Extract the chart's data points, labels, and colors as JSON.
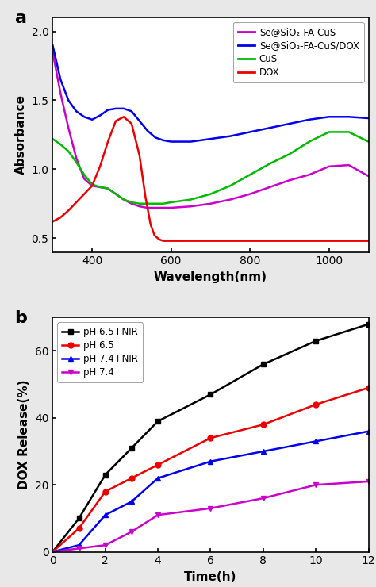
{
  "panel_a": {
    "xlabel": "Wavelength(nm)",
    "ylabel": "Absorbance",
    "xlim": [
      300,
      1100
    ],
    "ylim": [
      0.4,
      2.1
    ],
    "yticks": [
      0.5,
      1.0,
      1.5,
      2.0
    ],
    "xticks": [
      400,
      600,
      800,
      1000
    ],
    "series": {
      "magenta": {
        "label": "Se@SiO₂-FA-CuS",
        "color": "#cc00cc",
        "x": [
          300,
          320,
          340,
          360,
          380,
          400,
          420,
          440,
          460,
          480,
          500,
          520,
          540,
          560,
          580,
          600,
          650,
          700,
          750,
          800,
          850,
          900,
          950,
          1000,
          1050,
          1100
        ],
        "y": [
          1.85,
          1.55,
          1.3,
          1.08,
          0.93,
          0.88,
          0.87,
          0.86,
          0.82,
          0.78,
          0.75,
          0.73,
          0.72,
          0.72,
          0.72,
          0.72,
          0.73,
          0.75,
          0.78,
          0.82,
          0.87,
          0.92,
          0.96,
          1.02,
          1.03,
          0.95
        ]
      },
      "blue": {
        "label": "Se@SiO₂-FA-CuS/DOX",
        "color": "#0000ee",
        "x": [
          300,
          320,
          340,
          360,
          380,
          400,
          420,
          440,
          460,
          480,
          500,
          520,
          540,
          560,
          580,
          600,
          650,
          700,
          750,
          800,
          850,
          900,
          950,
          1000,
          1050,
          1100
        ],
        "y": [
          1.9,
          1.65,
          1.5,
          1.42,
          1.38,
          1.36,
          1.39,
          1.43,
          1.44,
          1.44,
          1.42,
          1.35,
          1.28,
          1.23,
          1.21,
          1.2,
          1.2,
          1.22,
          1.24,
          1.27,
          1.3,
          1.33,
          1.36,
          1.38,
          1.38,
          1.37
        ]
      },
      "green": {
        "label": "CuS",
        "color": "#00bb00",
        "x": [
          300,
          320,
          340,
          360,
          380,
          400,
          420,
          440,
          460,
          480,
          500,
          520,
          540,
          560,
          580,
          600,
          650,
          700,
          750,
          800,
          850,
          900,
          950,
          1000,
          1050,
          1100
        ],
        "y": [
          1.22,
          1.18,
          1.13,
          1.05,
          0.96,
          0.89,
          0.87,
          0.86,
          0.82,
          0.78,
          0.76,
          0.75,
          0.75,
          0.75,
          0.75,
          0.76,
          0.78,
          0.82,
          0.88,
          0.96,
          1.04,
          1.11,
          1.2,
          1.27,
          1.27,
          1.2
        ]
      },
      "red": {
        "label": "DOX",
        "color": "#ee0000",
        "x": [
          300,
          320,
          340,
          360,
          380,
          400,
          420,
          440,
          460,
          480,
          500,
          520,
          535,
          548,
          558,
          570,
          580,
          600,
          650,
          700,
          750,
          800,
          850,
          900,
          950,
          1000,
          1050,
          1100
        ],
        "y": [
          0.62,
          0.65,
          0.7,
          0.76,
          0.82,
          0.88,
          1.02,
          1.2,
          1.35,
          1.38,
          1.33,
          1.1,
          0.8,
          0.6,
          0.52,
          0.49,
          0.48,
          0.48,
          0.48,
          0.48,
          0.48,
          0.48,
          0.48,
          0.48,
          0.48,
          0.48,
          0.48,
          0.48
        ]
      }
    },
    "legend_order": [
      "magenta",
      "blue",
      "green",
      "red"
    ]
  },
  "panel_b": {
    "xlabel": "Time(h)",
    "ylabel": "DOX Release(%)",
    "xlim": [
      0,
      12
    ],
    "ylim": [
      0,
      70
    ],
    "yticks": [
      0,
      20,
      40,
      60
    ],
    "xticks": [
      0,
      2,
      4,
      6,
      8,
      10,
      12
    ],
    "series": {
      "black": {
        "label": "pH 6.5+NIR",
        "color": "#000000",
        "marker": "s",
        "x": [
          0,
          1,
          2,
          3,
          4,
          6,
          8,
          10,
          12
        ],
        "y": [
          0,
          10,
          23,
          31,
          39,
          47,
          56,
          63,
          68
        ]
      },
      "red": {
        "label": "pH 6.5",
        "color": "#ee0000",
        "marker": "o",
        "x": [
          0,
          1,
          2,
          3,
          4,
          6,
          8,
          10,
          12
        ],
        "y": [
          0,
          7,
          18,
          22,
          26,
          34,
          38,
          44,
          49
        ]
      },
      "blue": {
        "label": "pH 7.4+NIR",
        "color": "#0000ee",
        "marker": "^",
        "x": [
          0,
          1,
          2,
          3,
          4,
          6,
          8,
          10,
          12
        ],
        "y": [
          0,
          2,
          11,
          15,
          22,
          27,
          30,
          33,
          36
        ]
      },
      "magenta": {
        "label": "pH 7.4",
        "color": "#cc00cc",
        "marker": "v",
        "x": [
          0,
          1,
          2,
          3,
          4,
          6,
          8,
          10,
          12
        ],
        "y": [
          0,
          1,
          2,
          6,
          11,
          13,
          16,
          20,
          21
        ]
      }
    },
    "legend_order": [
      "black",
      "red",
      "blue",
      "magenta"
    ]
  },
  "bg_color": "#e8e8e8",
  "panel_bg": "#ffffff"
}
